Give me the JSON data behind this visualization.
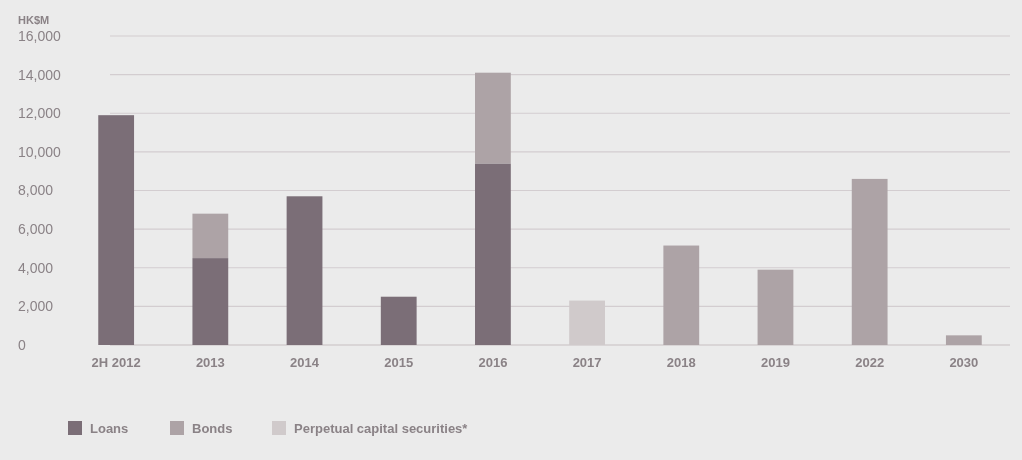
{
  "chart_data": {
    "type": "bar",
    "ylabel": "HK$M",
    "stacked": true,
    "categories": [
      "2H 2012",
      "2013",
      "2014",
      "2015",
      "2016",
      "2017",
      "2018",
      "2019",
      "2022",
      "2030"
    ],
    "series": [
      {
        "name": "Loans",
        "color": "#7b6e77",
        "values": [
          11900,
          4500,
          7700,
          2500,
          9400,
          null,
          null,
          null,
          null,
          null
        ]
      },
      {
        "name": "Bonds",
        "color": "#ada3a6",
        "values": [
          null,
          2300,
          null,
          null,
          4700,
          null,
          5150,
          3900,
          8600,
          500
        ]
      },
      {
        "name": "Perpetual capital securities*",
        "color": "#d0cacb",
        "values": [
          null,
          null,
          null,
          null,
          null,
          2300,
          null,
          null,
          null,
          null
        ]
      }
    ],
    "ylim": [
      0,
      16000
    ],
    "yticks": [
      {
        "value": 0,
        "label": "0"
      },
      {
        "value": 2000,
        "label": "2,000"
      },
      {
        "value": 4000,
        "label": "4,000"
      },
      {
        "value": 6000,
        "label": "6,000"
      },
      {
        "value": 8000,
        "label": "8,000"
      },
      {
        "value": 10000,
        "label": "10,000"
      },
      {
        "value": 12000,
        "label": "12,000"
      },
      {
        "value": 14000,
        "label": "14,000"
      },
      {
        "value": 16000,
        "label": "16,000"
      }
    ],
    "grid": "y",
    "legend": "bottom left"
  }
}
